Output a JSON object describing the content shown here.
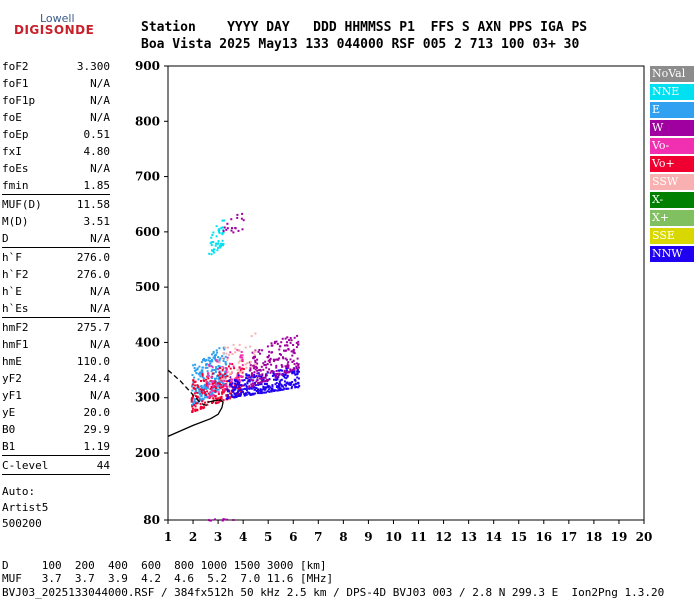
{
  "logo": {
    "line1": "Lowell",
    "line2": "DIGISONDE"
  },
  "header": {
    "row1": "Station    YYYY DAY   DDD HHMMSS P1  FFS S AXN PPS IGA PS",
    "row2": "Boa Vista 2025 May13 133 044000 RSF 005 2 713 100 03+ 30"
  },
  "params": {
    "group1": [
      {
        "name": "foF2",
        "value": "3.300"
      },
      {
        "name": "foF1",
        "value": "N/A"
      },
      {
        "name": "foF1p",
        "value": "N/A"
      },
      {
        "name": "foE",
        "value": "N/A"
      },
      {
        "name": "foEp",
        "value": "0.51"
      },
      {
        "name": "fxI",
        "value": "4.80"
      },
      {
        "name": "foEs",
        "value": "N/A"
      },
      {
        "name": "fmin",
        "value": "1.85"
      }
    ],
    "group2": [
      {
        "name": "MUF(D)",
        "value": "11.58"
      },
      {
        "name": "M(D)",
        "value": "3.51"
      },
      {
        "name": "D",
        "value": "N/A"
      }
    ],
    "group3": [
      {
        "name": "h`F",
        "value": "276.0"
      },
      {
        "name": "h`F2",
        "value": "276.0"
      },
      {
        "name": "h`E",
        "value": "N/A"
      },
      {
        "name": "h`Es",
        "value": "N/A"
      }
    ],
    "group4": [
      {
        "name": "hmF2",
        "value": "275.7"
      },
      {
        "name": "hmF1",
        "value": "N/A"
      },
      {
        "name": "hmE",
        "value": "110.0"
      },
      {
        "name": "yF2",
        "value": "24.4"
      },
      {
        "name": "yF1",
        "value": "N/A"
      },
      {
        "name": "yE",
        "value": "20.0"
      },
      {
        "name": "B0",
        "value": "29.9"
      },
      {
        "name": "B1",
        "value": "1.19"
      }
    ],
    "group5": [
      {
        "name": "C-level",
        "value": "44"
      }
    ]
  },
  "auto": {
    "line1": "Auto:",
    "line2": "Artist5",
    "line3": "500200"
  },
  "legend": [
    {
      "label": "NoVal",
      "color": "#8c8c8c"
    },
    {
      "label": "NNE",
      "color": "#00e0f0"
    },
    {
      "label": "E",
      "color": "#30a0f0"
    },
    {
      "label": "W",
      "color": "#a000a0"
    },
    {
      "label": "Vo-",
      "color": "#f030b0"
    },
    {
      "label": "Vo+",
      "color": "#f00030"
    },
    {
      "label": "SSW",
      "color": "#f8b0b0"
    },
    {
      "label": "X-",
      "color": "#008000"
    },
    {
      "label": "X+",
      "color": "#80c060"
    },
    {
      "label": "SSE",
      "color": "#d8d800"
    },
    {
      "label": "NNW",
      "color": "#2000f0"
    }
  ],
  "bottom": {
    "d_row": "D     100  200  400  600  800 1000 1500 3000 [km]",
    "muf_row": "MUF   3.7  3.7  3.9  4.2  4.6  5.2  7.0 11.6 [MHz]",
    "footer": "BVJ03_2025133044000.RSF / 384fx512h 50 kHz 2.5 km / DPS-4D BVJ03 003 / 2.8 N 299.3 E  Ion2Png 1.3.20"
  },
  "chart_data": {
    "type": "scatter",
    "xlim": [
      1,
      20
    ],
    "ylim": [
      80,
      900
    ],
    "x_ticks": [
      1,
      2,
      3,
      4,
      5,
      6,
      7,
      8,
      9,
      10,
      11,
      12,
      13,
      14,
      15,
      16,
      17,
      18,
      19,
      20
    ],
    "y_ticks": [
      80,
      200,
      300,
      400,
      500,
      600,
      700,
      800,
      900
    ],
    "clusters": [
      {
        "name": "E",
        "color": "#30a0f0",
        "x": [
          1.9,
          3.3
        ],
        "y": [
          285,
          400
        ],
        "n": 260
      },
      {
        "name": "NNE",
        "color": "#00e0f0",
        "x": [
          2.6,
          3.2
        ],
        "y": [
          555,
          625
        ],
        "n": 45
      },
      {
        "name": "W",
        "color": "#a000a0",
        "x": [
          3.1,
          4.0
        ],
        "y": [
          590,
          640
        ],
        "n": 18
      },
      {
        "name": "Vo+",
        "color": "#f00030",
        "x": [
          1.9,
          4.0
        ],
        "y": [
          275,
          375
        ],
        "n": 230
      },
      {
        "name": "Vo-",
        "color": "#f030b0",
        "x": [
          2.5,
          4.0
        ],
        "y": [
          300,
          400
        ],
        "n": 80
      },
      {
        "name": "NNW",
        "color": "#2000f0",
        "x": [
          3.3,
          6.2
        ],
        "y": [
          300,
          360
        ],
        "n": 320
      },
      {
        "name": "W",
        "color": "#a000a0",
        "x": [
          4.2,
          6.2
        ],
        "y": [
          320,
          420
        ],
        "n": 200
      },
      {
        "name": "SSW",
        "color": "#f8b0b0",
        "x": [
          3.0,
          4.5
        ],
        "y": [
          330,
          420
        ],
        "n": 40
      },
      {
        "name": "W",
        "color": "#a000a0",
        "x": [
          2.5,
          3.8
        ],
        "y": [
          80,
          84
        ],
        "n": 10
      }
    ],
    "profile": {
      "solid": [
        [
          1,
          230
        ],
        [
          2,
          250
        ],
        [
          2.7,
          262
        ],
        [
          3.0,
          270
        ],
        [
          3.15,
          282
        ],
        [
          3.2,
          292
        ],
        [
          3.1,
          296
        ],
        [
          2.8,
          294
        ],
        [
          2.6,
          292
        ]
      ],
      "dashed": [
        [
          1,
          350
        ],
        [
          1.5,
          330
        ],
        [
          2.0,
          305
        ],
        [
          2.3,
          290
        ],
        [
          2.6,
          285
        ]
      ]
    }
  }
}
